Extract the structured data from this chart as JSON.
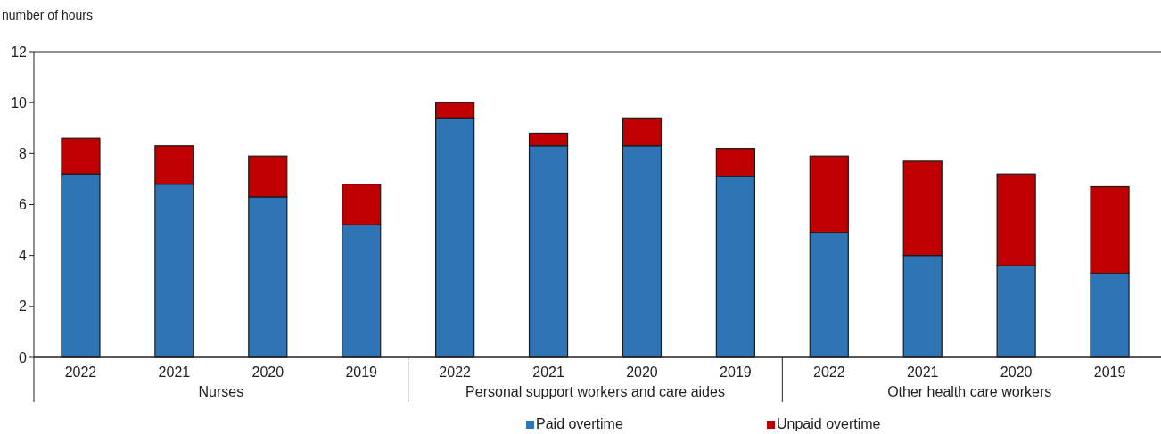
{
  "chart_data": {
    "type": "bar",
    "stacked": true,
    "ylabel": "number of hours",
    "categories": [
      "2022",
      "2021",
      "2020",
      "2019",
      "2022",
      "2021",
      "2020",
      "2019",
      "2022",
      "2021",
      "2020",
      "2019"
    ],
    "annotations": [
      "Nurses",
      "Personal support workers and care aides",
      "Other health care workers"
    ],
    "series": [
      {
        "name": "Paid overtime",
        "color": "#2e75b6",
        "values": [
          7.2,
          6.8,
          6.3,
          5.2,
          9.4,
          8.3,
          8.3,
          7.1,
          4.9,
          4.0,
          3.6,
          3.3
        ]
      },
      {
        "name": "Unpaid overtime",
        "color": "#c00000",
        "values": [
          1.4,
          1.5,
          1.6,
          1.6,
          0.6,
          0.5,
          1.1,
          1.1,
          3.0,
          3.7,
          3.6,
          3.4
        ]
      }
    ],
    "ylim": [
      0,
      12
    ],
    "yticks": [
      0,
      2,
      4,
      6,
      8,
      10,
      12
    ],
    "grid": false,
    "legend": "bottom"
  }
}
